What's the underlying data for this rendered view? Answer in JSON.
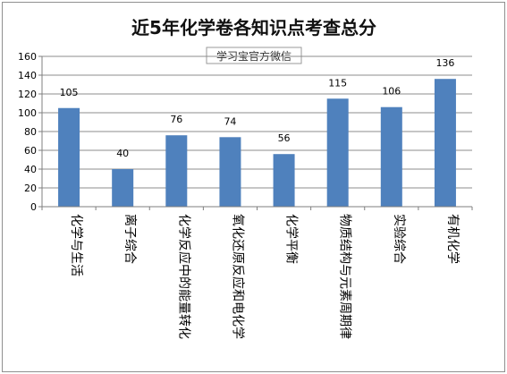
{
  "chart_data": {
    "type": "bar",
    "title": "近5年化学卷各知识点考查总分",
    "subtitle": "学习宝官方微信",
    "categories": [
      "化学与生活",
      "离子综合",
      "化学反应中的能量转化",
      "氧化还原反应和电化学",
      "化学平衡",
      "物质结构与元素周期律",
      "实验综合",
      "有机化学"
    ],
    "values": [
      105,
      40,
      76,
      74,
      56,
      115,
      106,
      136
    ],
    "ylim": [
      0,
      160
    ],
    "yticks": [
      0,
      20,
      40,
      60,
      80,
      100,
      120,
      140,
      160
    ],
    "grid": true,
    "legend": "none",
    "bar_color": "#4f81bd"
  }
}
